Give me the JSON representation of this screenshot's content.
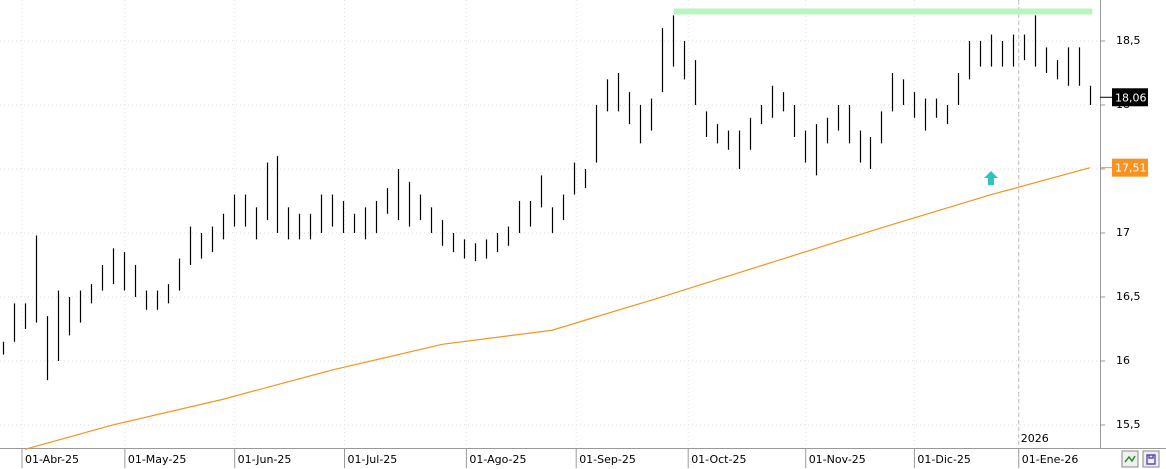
{
  "chart_data": {
    "type": "ohlc",
    "xlim": [
      -0.27,
      99.9
    ],
    "ylim": [
      15.32,
      18.82
    ],
    "xticks": [
      {
        "value": 1.73,
        "label": "01-Abr-25"
      },
      {
        "value": 11.1,
        "label": "01-May-25"
      },
      {
        "value": 21.1,
        "label": "01-Jun-25"
      },
      {
        "value": 31.1,
        "label": "01-Jul-25"
      },
      {
        "value": 42.2,
        "label": "01-Ago-25"
      },
      {
        "value": 52.2,
        "label": "01-Sep-25"
      },
      {
        "value": 62.4,
        "label": "01-Oct-25"
      },
      {
        "value": 73.1,
        "label": "01-Nov-25"
      },
      {
        "value": 83.0,
        "label": "01-Dic-25"
      },
      {
        "value": 92.5,
        "label": "01-Ene-26"
      }
    ],
    "yticks": [
      {
        "value": 15.5,
        "label": "15,5"
      },
      16,
      {
        "value": 16.5,
        "label": "16,5"
      },
      17,
      {
        "value": 17.5,
        "label": "17,5"
      },
      18,
      {
        "value": 18.5,
        "label": "18,5"
      }
    ],
    "grid": true,
    "bars": {
      "color": "#000000",
      "x": [
        0,
        1,
        2,
        3,
        4,
        5,
        6,
        7,
        8,
        9,
        10,
        11,
        12,
        13,
        14,
        15,
        16,
        17,
        18,
        19,
        20,
        21,
        22,
        23,
        24,
        25,
        26,
        27,
        28,
        29,
        30,
        31,
        32,
        33,
        34,
        35,
        36,
        37,
        38,
        39,
        40,
        41,
        42,
        43,
        44,
        45,
        46,
        47,
        48,
        49,
        50,
        51,
        52,
        53,
        54,
        55,
        56,
        57,
        58,
        59,
        60,
        61,
        62,
        63,
        64,
        65,
        66,
        67,
        68,
        69,
        70,
        71,
        72,
        73,
        74,
        75,
        76,
        77,
        78,
        79,
        80,
        81,
        82,
        83,
        84,
        85,
        86,
        87,
        88,
        89,
        90,
        91,
        92,
        93,
        94,
        95,
        96,
        97,
        98,
        99
      ],
      "high": [
        16.15,
        16.45,
        16.45,
        16.98,
        16.35,
        16.55,
        16.5,
        16.55,
        16.6,
        16.75,
        16.88,
        16.85,
        16.75,
        16.55,
        16.55,
        16.6,
        16.8,
        17.05,
        17.0,
        17.05,
        17.15,
        17.3,
        17.3,
        17.2,
        17.55,
        17.6,
        17.2,
        17.15,
        17.15,
        17.3,
        17.3,
        17.25,
        17.15,
        17.2,
        17.25,
        17.35,
        17.5,
        17.4,
        17.3,
        17.2,
        17.1,
        17.0,
        16.95,
        16.92,
        16.95,
        17.0,
        17.05,
        17.25,
        17.25,
        17.45,
        17.2,
        17.3,
        17.55,
        17.5,
        18.0,
        18.2,
        18.25,
        18.1,
        18.0,
        18.05,
        18.6,
        18.7,
        18.5,
        18.35,
        17.95,
        17.85,
        17.8,
        17.8,
        17.9,
        18.0,
        18.15,
        18.1,
        18.0,
        17.8,
        17.85,
        17.9,
        18.0,
        18.0,
        17.8,
        17.75,
        17.95,
        18.25,
        18.2,
        18.1,
        18.05,
        18.05,
        18.0,
        18.25,
        18.5,
        18.5,
        18.55,
        18.5,
        18.55,
        18.55,
        18.7,
        18.45,
        18.35,
        18.45,
        18.45,
        18.15
      ],
      "low": [
        16.05,
        16.15,
        16.25,
        16.3,
        15.85,
        16.0,
        16.2,
        16.3,
        16.45,
        16.55,
        16.6,
        16.55,
        16.5,
        16.4,
        16.4,
        16.45,
        16.55,
        16.75,
        16.8,
        16.85,
        16.95,
        17.05,
        17.05,
        16.95,
        17.1,
        17.0,
        16.95,
        16.95,
        16.95,
        17.0,
        17.05,
        17.0,
        17.0,
        16.95,
        17.0,
        17.15,
        17.1,
        17.05,
        17.1,
        17.0,
        16.9,
        16.85,
        16.8,
        16.78,
        16.8,
        16.85,
        16.9,
        17.0,
        17.05,
        17.2,
        17.0,
        17.1,
        17.3,
        17.35,
        17.55,
        17.95,
        17.95,
        17.85,
        17.7,
        17.8,
        18.1,
        18.3,
        18.2,
        18.0,
        17.75,
        17.7,
        17.65,
        17.5,
        17.65,
        17.85,
        17.9,
        17.95,
        17.75,
        17.55,
        17.45,
        17.7,
        17.8,
        17.7,
        17.55,
        17.5,
        17.7,
        17.95,
        18.0,
        17.9,
        17.8,
        17.9,
        17.85,
        18.0,
        18.2,
        18.3,
        18.3,
        18.3,
        18.3,
        18.35,
        18.3,
        18.25,
        18.2,
        18.15,
        18.15,
        18.0
      ]
    },
    "last_close": {
      "value": 18.06,
      "value_label": "18,06",
      "color": "#000000"
    },
    "moving_average": {
      "color": "#f7931e",
      "x": [
        2,
        10,
        20,
        30,
        40,
        50,
        60,
        70,
        80,
        90,
        99
      ],
      "values": [
        15.31,
        15.5,
        15.7,
        15.93,
        16.13,
        16.24,
        16.5,
        16.77,
        17.04,
        17.3,
        17.51
      ],
      "last": {
        "value": 17.51,
        "value_label": "17,51"
      }
    },
    "resistance": {
      "value": 18.73,
      "x": [
        61.1,
        99.2
      ],
      "color": "#b9f5c0"
    },
    "year_marker": {
      "x": 92.5,
      "label": "2026"
    }
  }
}
